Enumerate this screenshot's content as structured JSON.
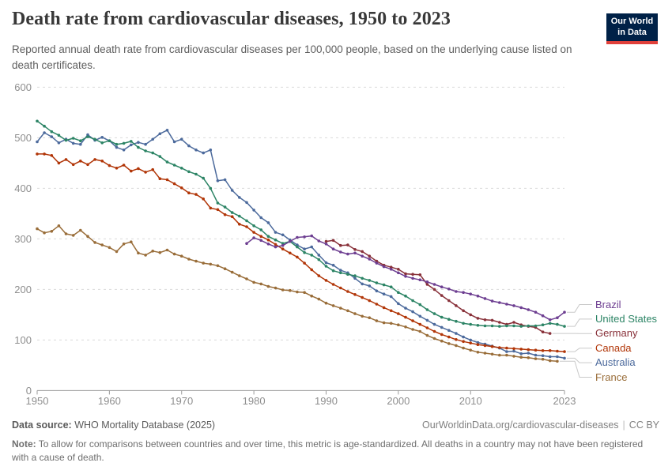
{
  "logo": {
    "line1": "Our World",
    "line2": "in Data"
  },
  "chart_data": {
    "type": "line",
    "title": "Death rate from cardiovascular diseases, 1950 to 2023",
    "subtitle": "Reported annual death rate from cardiovascular diseases per 100,000 people, based on the underlying cause listed on death certificates.",
    "x_range": [
      1950,
      2023
    ],
    "ylim": [
      0,
      600
    ],
    "yticks": [
      0,
      100,
      200,
      300,
      400,
      500,
      600
    ],
    "xticks": [
      1950,
      1960,
      1970,
      1980,
      1990,
      2000,
      2010,
      2023
    ],
    "grid": "horizontal-dashed",
    "legend_position": "right-of-plot",
    "series": [
      {
        "name": "Brazil",
        "color": "#6D3E91",
        "start_year": 1979,
        "values": [
          291,
          302,
          297,
          290,
          284,
          287,
          295,
          303,
          304,
          306,
          296,
          290,
          280,
          274,
          270,
          272,
          266,
          260,
          252,
          245,
          240,
          233,
          226,
          222,
          219,
          215,
          210,
          205,
          201,
          196,
          194,
          191,
          187,
          182,
          177,
          174,
          171,
          168,
          164,
          160,
          155,
          148,
          140,
          144,
          155
        ]
      },
      {
        "name": "United States",
        "color": "#2C8465",
        "start_year": 1950,
        "values": [
          533,
          523,
          512,
          505,
          495,
          499,
          494,
          502,
          497,
          490,
          494,
          487,
          489,
          493,
          481,
          474,
          470,
          463,
          452,
          446,
          440,
          433,
          428,
          420,
          400,
          371,
          363,
          352,
          345,
          336,
          326,
          318,
          305,
          298,
          291,
          295,
          284,
          273,
          268,
          259,
          246,
          237,
          233,
          230,
          227,
          222,
          218,
          213,
          209,
          205,
          194,
          187,
          178,
          170,
          160,
          152,
          145,
          141,
          137,
          133,
          131,
          129,
          128,
          128,
          127,
          128,
          128,
          127,
          128,
          128,
          130,
          133,
          131,
          127
        ]
      },
      {
        "name": "Germany",
        "color": "#883039",
        "start_year": 1990,
        "values": [
          295,
          297,
          287,
          288,
          279,
          275,
          266,
          256,
          248,
          244,
          240,
          231,
          230,
          229,
          210,
          200,
          188,
          178,
          168,
          158,
          150,
          143,
          140,
          139,
          135,
          131,
          135,
          130,
          127,
          125,
          116,
          113
        ]
      },
      {
        "name": "Canada",
        "color": "#B13507",
        "start_year": 1950,
        "values": [
          468,
          468,
          465,
          450,
          457,
          447,
          454,
          447,
          457,
          454,
          445,
          440,
          446,
          434,
          439,
          432,
          437,
          419,
          417,
          409,
          401,
          391,
          388,
          379,
          361,
          358,
          348,
          344,
          329,
          324,
          313,
          305,
          298,
          289,
          280,
          272,
          264,
          252,
          239,
          227,
          218,
          210,
          203,
          196,
          190,
          184,
          178,
          171,
          164,
          158,
          152,
          145,
          138,
          131,
          124,
          117,
          111,
          106,
          101,
          97,
          94,
          91,
          89,
          87,
          85,
          84,
          83,
          82,
          81,
          80,
          79,
          79,
          78,
          77
        ]
      },
      {
        "name": "Australia",
        "color": "#4C6A9C",
        "start_year": 1950,
        "values": [
          492,
          510,
          502,
          490,
          497,
          489,
          487,
          506,
          495,
          501,
          494,
          481,
          476,
          486,
          491,
          487,
          497,
          508,
          515,
          492,
          497,
          484,
          476,
          470,
          476,
          415,
          417,
          396,
          382,
          372,
          357,
          342,
          332,
          313,
          308,
          298,
          288,
          280,
          284,
          268,
          253,
          248,
          238,
          233,
          222,
          211,
          207,
          197,
          191,
          186,
          172,
          163,
          156,
          147,
          139,
          131,
          125,
          119,
          113,
          106,
          100,
          95,
          92,
          88,
          84,
          77,
          78,
          73,
          74,
          70,
          69,
          67,
          67,
          64
        ]
      },
      {
        "name": "France",
        "color": "#996D39",
        "start_year": 1950,
        "values": [
          320,
          312,
          315,
          326,
          310,
          307,
          317,
          305,
          293,
          288,
          283,
          275,
          290,
          294,
          272,
          268,
          276,
          273,
          278,
          270,
          266,
          260,
          256,
          252,
          250,
          247,
          241,
          234,
          227,
          221,
          214,
          211,
          206,
          203,
          199,
          198,
          195,
          194,
          187,
          181,
          173,
          168,
          163,
          158,
          152,
          147,
          144,
          138,
          134,
          133,
          130,
          126,
          121,
          117,
          109,
          103,
          98,
          93,
          89,
          84,
          80,
          76,
          74,
          72,
          70,
          70,
          68,
          66,
          65,
          63,
          62,
          59,
          58
        ]
      }
    ]
  },
  "footer": {
    "data_source_label": "Data source:",
    "data_source_value": "WHO Mortality Database (2025)",
    "link": "OurWorldinData.org/cardiovascular-diseases",
    "divider": "|",
    "license": "CC BY",
    "note_label": "Note:",
    "note_text": "To allow for comparisons between countries and over time, this metric is age-standardized. All deaths in a country may not have been registered with a cause of death."
  }
}
